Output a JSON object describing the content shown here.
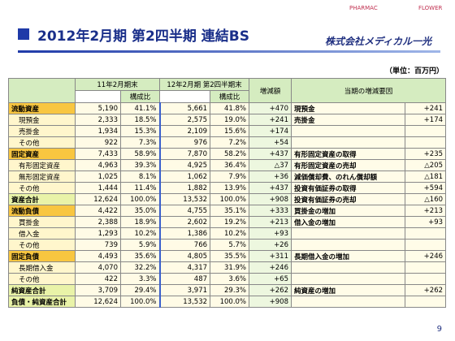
{
  "header": {
    "title": "2012年2月期 第2四半期 連結BS",
    "logo_top": "PHARMAC",
    "logo_flower": "FLOWER",
    "company": "株式会社メディカル一光",
    "unit": "（単位：百万円）"
  },
  "table": {
    "columns": {
      "prev": "11年2月期末",
      "ratio": "構成比",
      "curr": "12年2月期 第2四半期末",
      "change": "増減額",
      "factor": "当期の増減要因"
    },
    "rows": [
      {
        "label": "流動資産",
        "prev": "5,190",
        "prev_ratio": "41.1%",
        "curr": "5,661",
        "curr_ratio": "41.8%",
        "change": "+470",
        "factor": "現預金",
        "factor_value": "+241"
      },
      {
        "label": "現預金",
        "prev": "2,333",
        "prev_ratio": "18.5%",
        "curr": "2,575",
        "curr_ratio": "19.0%",
        "change": "+241",
        "factor": "売掛金",
        "factor_value": "+174"
      },
      {
        "label": "売掛金",
        "prev": "1,934",
        "prev_ratio": "15.3%",
        "curr": "2,109",
        "curr_ratio": "15.6%",
        "change": "+174"
      },
      {
        "label": "その他",
        "prev": "922",
        "prev_ratio": "7.3%",
        "curr": "976",
        "curr_ratio": "7.2%",
        "change": "+54"
      },
      {
        "label": "固定資産",
        "prev": "7,433",
        "prev_ratio": "58.9%",
        "curr": "7,870",
        "curr_ratio": "58.2%",
        "change": "+437",
        "factor": "有形固定資産の取得",
        "factor_value": "+235"
      },
      {
        "label": "有形固定資産",
        "prev": "4,963",
        "prev_ratio": "39.3%",
        "curr": "4,925",
        "curr_ratio": "36.4%",
        "change": "△37",
        "factor": "有形固定資産の売却",
        "factor_value": "△205"
      },
      {
        "label": "無形固定資産",
        "prev": "1,025",
        "prev_ratio": "8.1%",
        "curr": "1,062",
        "curr_ratio": "7.9%",
        "change": "+36",
        "factor": "減価償却費、のれん償却額",
        "factor_value": "△181"
      },
      {
        "label": "その他",
        "prev": "1,444",
        "prev_ratio": "11.4%",
        "curr": "1,882",
        "curr_ratio": "13.9%",
        "change": "+437",
        "factor": "投資有価証券の取得",
        "factor_value": "+594"
      },
      {
        "label": "資産合計",
        "prev": "12,624",
        "prev_ratio": "100.0%",
        "curr": "13,532",
        "curr_ratio": "100.0%",
        "change": "+908",
        "factor": "投資有価証券の売却",
        "factor_value": "△160"
      },
      {
        "label": "流動負債",
        "prev": "4,422",
        "prev_ratio": "35.0%",
        "curr": "4,755",
        "curr_ratio": "35.1%",
        "change": "+333",
        "factor": "買掛金の増加",
        "factor_value": "+213"
      },
      {
        "label": "買掛金",
        "prev": "2,388",
        "prev_ratio": "18.9%",
        "curr": "2,602",
        "curr_ratio": "19.2%",
        "change": "+213",
        "factor": "借入金の増加",
        "factor_value": "+93"
      },
      {
        "label": "借入金",
        "prev": "1,293",
        "prev_ratio": "10.2%",
        "curr": "1,386",
        "curr_ratio": "10.2%",
        "change": "+93"
      },
      {
        "label": "その他",
        "prev": "739",
        "prev_ratio": "5.9%",
        "curr": "766",
        "curr_ratio": "5.7%",
        "change": "+26"
      },
      {
        "label": "固定負債",
        "prev": "4,493",
        "prev_ratio": "35.6%",
        "curr": "4,805",
        "curr_ratio": "35.5%",
        "change": "+311",
        "factor": "長期借入金の増加",
        "factor_value": "+246"
      },
      {
        "label": "長期借入金",
        "prev": "4,070",
        "prev_ratio": "32.2%",
        "curr": "4,317",
        "curr_ratio": "31.9%",
        "change": "+246"
      },
      {
        "label": "その他",
        "prev": "422",
        "prev_ratio": "3.3%",
        "curr": "487",
        "curr_ratio": "3.6%",
        "change": "+65"
      },
      {
        "label": "純資産合計",
        "prev": "3,709",
        "prev_ratio": "29.4%",
        "curr": "3,971",
        "curr_ratio": "29.3%",
        "change": "+262",
        "factor": "純資産の増加",
        "factor_value": "+262"
      },
      {
        "label": "負債・純資産合計",
        "prev": "12,624",
        "prev_ratio": "100.0%",
        "curr": "13,532",
        "curr_ratio": "100.0%",
        "change": "+908"
      }
    ]
  },
  "footer": {
    "page": "9"
  }
}
